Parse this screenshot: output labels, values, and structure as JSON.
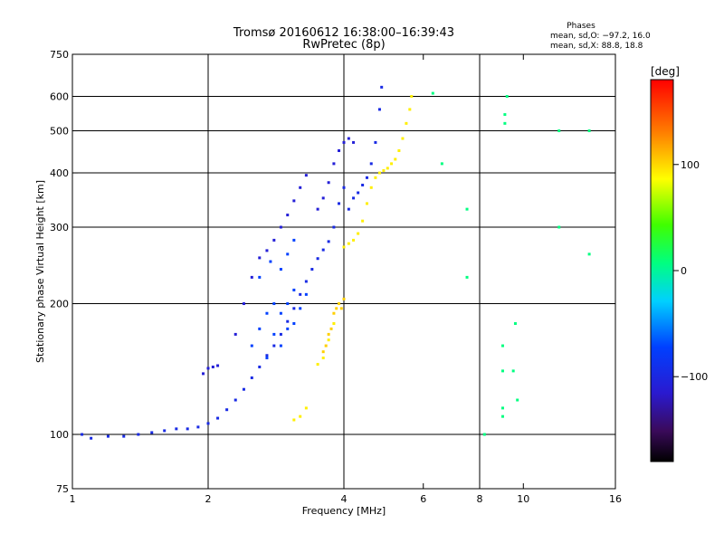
{
  "chart_data": {
    "type": "scatter",
    "title": "Tromsø 20160612 16:38:00–16:39:43",
    "subtitle": "RwPretec (8p)",
    "xlabel": "Frequency [MHz]",
    "ylabel": "Stationary phase Virtual Height [km]",
    "x_scale": "log2",
    "y_scale": "log",
    "xlim": [
      1,
      16
    ],
    "ylim": [
      75,
      750
    ],
    "x_ticks": [
      1,
      2,
      4,
      6,
      8,
      10,
      16
    ],
    "y_ticks": [
      75,
      100,
      200,
      300,
      400,
      500,
      600,
      750
    ],
    "x_grid": [
      1,
      2,
      4,
      8,
      16
    ],
    "y_grid": [
      100,
      200,
      300,
      400,
      500,
      600,
      750
    ],
    "grid": true,
    "phase_box": {
      "title": "Phases",
      "line1": "mean, sd,O: −97.2, 16.0",
      "line2": "mean, sd,X:  88.8, 18.8"
    },
    "colorbar": {
      "label": "[deg]",
      "range": [
        -180,
        180
      ],
      "ticks": [
        100,
        0,
        -100
      ],
      "ticks_text": [
        "100",
        "0",
        "−100"
      ]
    },
    "series": [
      {
        "mode": "O",
        "phase": -100,
        "points": [
          [
            1.05,
            100
          ],
          [
            1.1,
            98
          ],
          [
            1.2,
            99
          ],
          [
            1.3,
            99
          ],
          [
            1.4,
            100
          ],
          [
            1.5,
            101
          ],
          [
            1.6,
            102
          ],
          [
            1.7,
            103
          ],
          [
            1.8,
            103
          ],
          [
            1.9,
            104
          ],
          [
            2.0,
            106
          ],
          [
            2.1,
            109
          ],
          [
            2.2,
            114
          ],
          [
            2.3,
            120
          ],
          [
            2.4,
            127
          ],
          [
            2.5,
            135
          ],
          [
            2.6,
            143
          ],
          [
            2.7,
            152
          ],
          [
            2.8,
            160
          ],
          [
            2.9,
            170
          ],
          [
            3.0,
            182
          ],
          [
            3.1,
            195
          ],
          [
            3.2,
            210
          ],
          [
            3.3,
            225
          ],
          [
            3.4,
            240
          ],
          [
            3.5,
            254
          ],
          [
            3.6,
            266
          ],
          [
            3.7,
            278
          ],
          [
            3.8,
            300
          ],
          [
            3.9,
            340
          ],
          [
            4.0,
            370
          ],
          [
            4.1,
            330
          ],
          [
            4.2,
            350
          ],
          [
            4.3,
            360
          ],
          [
            4.4,
            375
          ],
          [
            4.5,
            390
          ],
          [
            4.6,
            420
          ],
          [
            4.7,
            470
          ],
          [
            4.8,
            560
          ],
          [
            4.85,
            630
          ]
        ]
      },
      {
        "mode": "O-upper",
        "phase": -110,
        "points": [
          [
            2.05,
            143
          ],
          [
            2.1,
            144
          ],
          [
            2.0,
            142
          ],
          [
            1.95,
            138
          ],
          [
            2.3,
            170
          ],
          [
            2.4,
            200
          ],
          [
            2.5,
            230
          ],
          [
            2.6,
            255
          ],
          [
            2.7,
            265
          ],
          [
            2.8,
            280
          ],
          [
            2.9,
            300
          ],
          [
            3.0,
            320
          ],
          [
            3.1,
            345
          ],
          [
            3.2,
            370
          ],
          [
            3.3,
            395
          ],
          [
            3.5,
            330
          ],
          [
            3.6,
            350
          ],
          [
            3.7,
            380
          ],
          [
            3.8,
            420
          ],
          [
            3.9,
            450
          ],
          [
            4.0,
            470
          ],
          [
            4.1,
            480
          ],
          [
            4.2,
            470
          ]
        ]
      },
      {
        "mode": "O-blue-spread",
        "phase": -80,
        "points": [
          [
            2.5,
            160
          ],
          [
            2.6,
            175
          ],
          [
            2.7,
            190
          ],
          [
            2.8,
            200
          ],
          [
            2.9,
            190
          ],
          [
            3.0,
            200
          ],
          [
            3.1,
            215
          ],
          [
            2.7,
            150
          ],
          [
            2.8,
            170
          ],
          [
            2.9,
            160
          ],
          [
            3.0,
            175
          ],
          [
            3.1,
            180
          ],
          [
            3.2,
            195
          ],
          [
            3.3,
            210
          ],
          [
            2.6,
            230
          ],
          [
            2.75,
            250
          ],
          [
            2.9,
            240
          ],
          [
            3.0,
            260
          ],
          [
            3.1,
            280
          ]
        ]
      },
      {
        "mode": "X",
        "phase": 95,
        "points": [
          [
            3.1,
            108
          ],
          [
            3.2,
            110
          ],
          [
            3.3,
            115
          ],
          [
            3.5,
            145
          ],
          [
            3.6,
            150
          ],
          [
            3.7,
            165
          ],
          [
            3.8,
            180
          ],
          [
            3.9,
            200
          ],
          [
            4.0,
            270
          ],
          [
            4.1,
            275
          ],
          [
            4.2,
            280
          ],
          [
            4.3,
            290
          ],
          [
            4.4,
            310
          ],
          [
            4.5,
            340
          ],
          [
            4.6,
            370
          ],
          [
            4.7,
            390
          ],
          [
            4.8,
            400
          ],
          [
            4.9,
            405
          ],
          [
            5.0,
            410
          ],
          [
            5.1,
            420
          ],
          [
            5.2,
            430
          ],
          [
            5.3,
            450
          ],
          [
            5.4,
            480
          ],
          [
            5.5,
            520
          ],
          [
            5.6,
            560
          ],
          [
            5.65,
            600
          ]
        ]
      },
      {
        "mode": "X-lower",
        "phase": 105,
        "points": [
          [
            3.6,
            155
          ],
          [
            3.65,
            160
          ],
          [
            3.7,
            170
          ],
          [
            3.75,
            175
          ],
          [
            3.8,
            190
          ],
          [
            3.85,
            195
          ],
          [
            3.9,
            200
          ],
          [
            3.95,
            195
          ],
          [
            4.0,
            205
          ]
        ]
      },
      {
        "mode": "scatter-high",
        "phase": 0,
        "points": [
          [
            6.3,
            610
          ],
          [
            6.6,
            420
          ],
          [
            7.5,
            330
          ],
          [
            7.5,
            230
          ],
          [
            8.2,
            100
          ],
          [
            9.0,
            160
          ],
          [
            9.0,
            140
          ],
          [
            9.0,
            115
          ],
          [
            9.0,
            110
          ],
          [
            9.1,
            520
          ],
          [
            9.1,
            545
          ],
          [
            9.2,
            600
          ],
          [
            9.5,
            140
          ],
          [
            9.6,
            180
          ],
          [
            9.7,
            120
          ],
          [
            12.0,
            500
          ],
          [
            12.0,
            300
          ],
          [
            14.0,
            260
          ],
          [
            14.0,
            500
          ]
        ]
      }
    ]
  }
}
